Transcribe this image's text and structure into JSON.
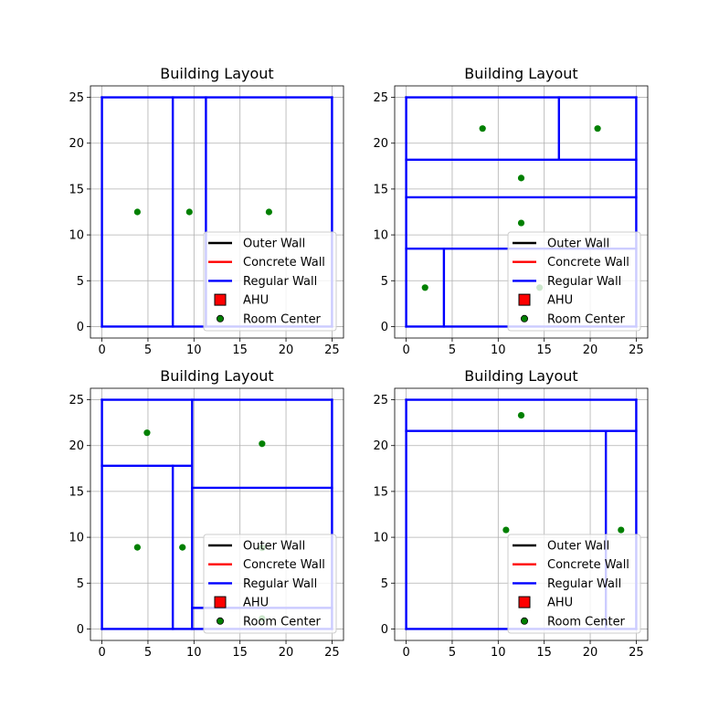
{
  "colors": {
    "outer": "#000000",
    "concrete": "#ff0000",
    "regular": "#0000ff",
    "ahu": "#ff0000",
    "room_center": "#008000",
    "grid": "#b0b0b0"
  },
  "legend": {
    "items": [
      {
        "label": "Outer Wall",
        "kind": "line",
        "color": "#000000"
      },
      {
        "label": "Concrete Wall",
        "kind": "line",
        "color": "#ff0000"
      },
      {
        "label": "Regular Wall",
        "kind": "line",
        "color": "#0000ff"
      },
      {
        "label": "AHU",
        "kind": "square",
        "color": "#ff0000"
      },
      {
        "label": "Room Center",
        "kind": "dot",
        "color": "#008000"
      }
    ]
  },
  "chart_data": [
    {
      "type": "scatter",
      "title": "Building Layout",
      "xlim": [
        -1.25,
        26.25
      ],
      "ylim": [
        -1.25,
        26.25
      ],
      "xticks": [
        0,
        5,
        10,
        15,
        20,
        25
      ],
      "yticks": [
        0,
        5,
        10,
        15,
        20,
        25
      ],
      "grid": true,
      "legend_position": "lower right",
      "walls": [
        {
          "type": "regular",
          "x": [
            0,
            25
          ],
          "y": [
            0,
            0
          ]
        },
        {
          "type": "regular",
          "x": [
            25,
            25
          ],
          "y": [
            0,
            25
          ]
        },
        {
          "type": "regular",
          "x": [
            25,
            0
          ],
          "y": [
            25,
            25
          ]
        },
        {
          "type": "regular",
          "x": [
            0,
            0
          ],
          "y": [
            25,
            0
          ]
        },
        {
          "type": "regular",
          "x": [
            7.7,
            7.7
          ],
          "y": [
            0,
            25
          ]
        },
        {
          "type": "regular",
          "x": [
            11.3,
            11.3
          ],
          "y": [
            0,
            25
          ]
        }
      ],
      "room_centers": [
        {
          "x": 3.85,
          "y": 12.5
        },
        {
          "x": 9.5,
          "y": 12.5
        },
        {
          "x": 18.15,
          "y": 12.5
        }
      ]
    },
    {
      "type": "scatter",
      "title": "Building Layout",
      "xlim": [
        -1.25,
        26.25
      ],
      "ylim": [
        -1.25,
        26.25
      ],
      "xticks": [
        0,
        5,
        10,
        15,
        20,
        25
      ],
      "yticks": [
        0,
        5,
        10,
        15,
        20,
        25
      ],
      "grid": true,
      "legend_position": "lower right",
      "walls": [
        {
          "type": "regular",
          "x": [
            0,
            25
          ],
          "y": [
            0,
            0
          ]
        },
        {
          "type": "regular",
          "x": [
            25,
            25
          ],
          "y": [
            0,
            25
          ]
        },
        {
          "type": "regular",
          "x": [
            25,
            0
          ],
          "y": [
            25,
            25
          ]
        },
        {
          "type": "regular",
          "x": [
            0,
            0
          ],
          "y": [
            25,
            0
          ]
        },
        {
          "type": "regular",
          "x": [
            0,
            25
          ],
          "y": [
            18.2,
            18.2
          ]
        },
        {
          "type": "regular",
          "x": [
            0,
            25
          ],
          "y": [
            14.1,
            14.1
          ]
        },
        {
          "type": "regular",
          "x": [
            0,
            25
          ],
          "y": [
            8.5,
            8.5
          ]
        },
        {
          "type": "regular",
          "x": [
            16.6,
            16.6
          ],
          "y": [
            18.2,
            25
          ]
        },
        {
          "type": "regular",
          "x": [
            4.1,
            4.1
          ],
          "y": [
            0,
            8.5
          ]
        }
      ],
      "room_centers": [
        {
          "x": 8.3,
          "y": 21.6
        },
        {
          "x": 20.8,
          "y": 21.6
        },
        {
          "x": 12.5,
          "y": 16.2
        },
        {
          "x": 12.5,
          "y": 11.3
        },
        {
          "x": 2.05,
          "y": 4.25
        },
        {
          "x": 14.5,
          "y": 4.25
        }
      ]
    },
    {
      "type": "scatter",
      "title": "Building Layout",
      "xlim": [
        -1.25,
        26.25
      ],
      "ylim": [
        -1.25,
        26.25
      ],
      "xticks": [
        0,
        5,
        10,
        15,
        20,
        25
      ],
      "yticks": [
        0,
        5,
        10,
        15,
        20,
        25
      ],
      "grid": true,
      "legend_position": "lower right",
      "walls": [
        {
          "type": "regular",
          "x": [
            0,
            25
          ],
          "y": [
            0,
            0
          ]
        },
        {
          "type": "regular",
          "x": [
            25,
            25
          ],
          "y": [
            0,
            25
          ]
        },
        {
          "type": "regular",
          "x": [
            25,
            0
          ],
          "y": [
            25,
            25
          ]
        },
        {
          "type": "regular",
          "x": [
            0,
            0
          ],
          "y": [
            25,
            0
          ]
        },
        {
          "type": "regular",
          "x": [
            9.8,
            9.8
          ],
          "y": [
            0,
            25
          ]
        },
        {
          "type": "regular",
          "x": [
            0,
            9.8
          ],
          "y": [
            17.8,
            17.8
          ]
        },
        {
          "type": "regular",
          "x": [
            7.7,
            7.7
          ],
          "y": [
            0,
            17.8
          ]
        },
        {
          "type": "regular",
          "x": [
            9.8,
            25
          ],
          "y": [
            15.4,
            15.4
          ]
        },
        {
          "type": "regular",
          "x": [
            9.8,
            25
          ],
          "y": [
            2.3,
            2.3
          ]
        }
      ],
      "room_centers": [
        {
          "x": 4.9,
          "y": 21.4
        },
        {
          "x": 17.4,
          "y": 20.2
        },
        {
          "x": 3.85,
          "y": 8.9
        },
        {
          "x": 8.75,
          "y": 8.9
        },
        {
          "x": 17.4,
          "y": 8.85
        },
        {
          "x": 17.4,
          "y": 1.15
        }
      ]
    },
    {
      "type": "scatter",
      "title": "Building Layout",
      "xlim": [
        -1.25,
        26.25
      ],
      "ylim": [
        -1.25,
        26.25
      ],
      "xticks": [
        0,
        5,
        10,
        15,
        20,
        25
      ],
      "yticks": [
        0,
        5,
        10,
        15,
        20,
        25
      ],
      "grid": true,
      "legend_position": "lower right",
      "walls": [
        {
          "type": "regular",
          "x": [
            0,
            25
          ],
          "y": [
            0,
            0
          ]
        },
        {
          "type": "regular",
          "x": [
            25,
            25
          ],
          "y": [
            0,
            25
          ]
        },
        {
          "type": "regular",
          "x": [
            25,
            0
          ],
          "y": [
            25,
            25
          ]
        },
        {
          "type": "regular",
          "x": [
            0,
            0
          ],
          "y": [
            25,
            0
          ]
        },
        {
          "type": "regular",
          "x": [
            0,
            25
          ],
          "y": [
            21.6,
            21.6
          ]
        },
        {
          "type": "regular",
          "x": [
            21.7,
            21.7
          ],
          "y": [
            0,
            21.6
          ]
        }
      ],
      "room_centers": [
        {
          "x": 12.5,
          "y": 23.3
        },
        {
          "x": 10.85,
          "y": 10.8
        },
        {
          "x": 23.35,
          "y": 10.8
        }
      ]
    }
  ]
}
